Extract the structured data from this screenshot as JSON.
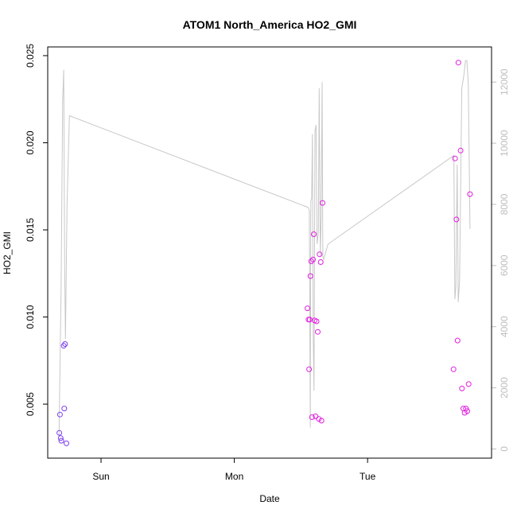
{
  "chart_data": {
    "type": "scatter",
    "title": "ATOM1 North_America HO2_GMI",
    "xlabel": "Date",
    "ylabel": "HO2_GMI",
    "x_ticks": [
      {
        "label": "Sun",
        "day": 1.0
      },
      {
        "label": "Mon",
        "day": 2.0
      },
      {
        "label": "Tue",
        "day": 3.0
      }
    ],
    "xlim": [
      0.6,
      3.93
    ],
    "y_ticks": [
      0.005,
      0.01,
      0.015,
      0.02,
      0.025
    ],
    "y_tick_labels": [
      "0.005",
      "0.010",
      "0.015",
      "0.020",
      "0.025"
    ],
    "ylim": [
      0.0019,
      0.0255
    ],
    "y2_ticks": [
      0,
      2000,
      4000,
      6000,
      8000,
      10000,
      12000
    ],
    "y2_tick_labels": [
      "0",
      "2000",
      "4000",
      "6000",
      "8000",
      "10000",
      "12000"
    ],
    "y2lim": [
      -300,
      13150
    ],
    "grid": false,
    "colors": {
      "altitude_line": "#c8c8c8",
      "right_axis": "#bdbdbd",
      "points_early": "#7a3ff0",
      "points_late": "#e31de0"
    },
    "series": [
      {
        "kind": "points",
        "color": "#7a3ff0",
        "points": [
          [
            0.687,
            0.00335
          ],
          [
            0.692,
            0.0044
          ],
          [
            0.697,
            0.00305
          ],
          [
            0.702,
            0.0029
          ],
          [
            0.72,
            0.00835
          ],
          [
            0.724,
            0.00475
          ],
          [
            0.73,
            0.00845
          ],
          [
            0.74,
            0.00275
          ]
        ]
      },
      {
        "kind": "points",
        "color": "#e31de0",
        "points": [
          [
            2.549,
            0.0105
          ],
          [
            2.557,
            0.00985
          ],
          [
            2.561,
            0.007
          ],
          [
            2.566,
            0.00985
          ],
          [
            2.571,
            0.01235
          ],
          [
            2.577,
            0.0132
          ],
          [
            2.583,
            0.00425
          ],
          [
            2.59,
            0.0133
          ],
          [
            2.596,
            0.01475
          ],
          [
            2.603,
            0.0098
          ],
          [
            2.61,
            0.0043
          ],
          [
            2.617,
            0.00975
          ],
          [
            2.626,
            0.00915
          ],
          [
            2.634,
            0.00415
          ],
          [
            2.64,
            0.0136
          ],
          [
            2.648,
            0.01315
          ],
          [
            2.654,
            0.00405
          ],
          [
            2.662,
            0.01655
          ],
          [
            3.645,
            0.007
          ],
          [
            3.656,
            0.0191
          ],
          [
            3.666,
            0.0156
          ],
          [
            3.675,
            0.00865
          ],
          [
            3.681,
            0.0246
          ],
          [
            3.698,
            0.01955
          ],
          [
            3.708,
            0.0059
          ],
          [
            3.718,
            0.00475
          ],
          [
            3.728,
            0.0045
          ],
          [
            3.738,
            0.00475
          ],
          [
            3.748,
            0.0046
          ],
          [
            3.758,
            0.00615
          ],
          [
            3.768,
            0.01705
          ]
        ]
      },
      {
        "kind": "line",
        "axis": "right",
        "color": "#c8c8c8",
        "points": [
          [
            0.685,
            400
          ],
          [
            0.7,
            5200
          ],
          [
            0.712,
            11400
          ],
          [
            0.72,
            12400
          ],
          [
            0.727,
            6000
          ],
          [
            0.733,
            3600
          ],
          [
            0.745,
            8000
          ],
          [
            0.763,
            10900
          ],
          [
            2.554,
            7900
          ],
          [
            2.563,
            7800
          ],
          [
            2.57,
            700
          ],
          [
            2.574,
            8100
          ],
          [
            2.58,
            8200
          ],
          [
            2.586,
            10300
          ],
          [
            2.592,
            3700
          ],
          [
            2.598,
            1900
          ],
          [
            2.605,
            10400
          ],
          [
            2.613,
            10600
          ],
          [
            2.621,
            6700
          ],
          [
            2.631,
            7100
          ],
          [
            2.637,
            11800
          ],
          [
            2.645,
            6300
          ],
          [
            2.652,
            7600
          ],
          [
            2.659,
            12000
          ],
          [
            2.664,
            6300
          ],
          [
            2.67,
            6200
          ],
          [
            2.703,
            6700
          ],
          [
            3.647,
            9600
          ],
          [
            3.655,
            4900
          ],
          [
            3.662,
            5300
          ],
          [
            3.672,
            9300
          ],
          [
            3.68,
            4800
          ],
          [
            3.69,
            5500
          ],
          [
            3.707,
            11800
          ],
          [
            3.722,
            12200
          ],
          [
            3.734,
            12700
          ],
          [
            3.745,
            12700
          ],
          [
            3.756,
            11900
          ],
          [
            3.768,
            7200
          ]
        ]
      }
    ]
  }
}
